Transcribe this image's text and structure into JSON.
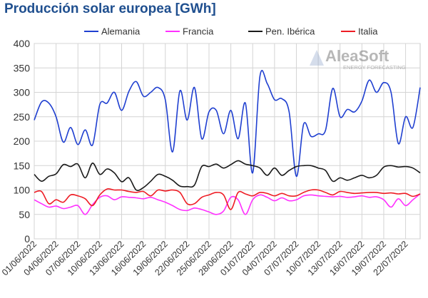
{
  "chart_data": {
    "type": "line",
    "title": "Producción solar europea [GWh]",
    "xlabel": "",
    "ylabel": "",
    "ylim": [
      0,
      400
    ],
    "yticks": [
      0,
      50,
      100,
      150,
      200,
      250,
      300,
      350,
      400
    ],
    "grid": true,
    "legend": "top",
    "watermark": {
      "brand": "AleaSoft",
      "tagline": "ENERGY FORECASTING"
    },
    "x": [
      "01/06/2022",
      "02/06/2022",
      "03/06/2022",
      "04/06/2022",
      "05/06/2022",
      "06/06/2022",
      "07/06/2022",
      "08/06/2022",
      "09/06/2022",
      "10/06/2022",
      "11/06/2022",
      "12/06/2022",
      "13/06/2022",
      "14/06/2022",
      "15/06/2022",
      "16/06/2022",
      "17/06/2022",
      "18/06/2022",
      "19/06/2022",
      "20/06/2022",
      "21/06/2022",
      "22/06/2022",
      "23/06/2022",
      "24/06/2022",
      "25/06/2022",
      "26/06/2022",
      "27/06/2022",
      "28/06/2022",
      "29/06/2022",
      "30/06/2022",
      "01/07/2022",
      "02/07/2022",
      "03/07/2022",
      "04/07/2022",
      "05/07/2022",
      "06/07/2022",
      "07/07/2022",
      "08/07/2022",
      "09/07/2022",
      "10/07/2022",
      "11/07/2022",
      "12/07/2022",
      "13/07/2022",
      "14/07/2022",
      "15/07/2022",
      "16/07/2022",
      "17/07/2022",
      "18/07/2022",
      "19/07/2022",
      "20/07/2022",
      "21/07/2022",
      "22/07/2022",
      "23/07/2022",
      "24/07/2022"
    ],
    "xticks": [
      "01/06/2022",
      "04/06/2022",
      "07/06/2022",
      "10/06/2022",
      "13/06/2022",
      "16/06/2022",
      "19/06/2022",
      "22/06/2022",
      "25/06/2022",
      "28/06/2022",
      "01/07/2022",
      "04/07/2022",
      "07/07/2022",
      "10/07/2022",
      "13/07/2022",
      "16/07/2022",
      "19/07/2022",
      "22/07/2022"
    ],
    "series": [
      {
        "name": "Alemania",
        "color": "#1f3fd0",
        "values": [
          243,
          280,
          278,
          250,
          198,
          228,
          193,
          223,
          192,
          275,
          278,
          300,
          263,
          302,
          322,
          292,
          300,
          310,
          285,
          178,
          303,
          243,
          310,
          205,
          260,
          263,
          215,
          263,
          205,
          278,
          135,
          333,
          318,
          285,
          287,
          260,
          128,
          235,
          210,
          215,
          222,
          308,
          250,
          265,
          260,
          282,
          325,
          300,
          320,
          300,
          195,
          250,
          228,
          310
        ]
      },
      {
        "name": "Francia",
        "color": "#ff30ff",
        "values": [
          80,
          72,
          65,
          67,
          62,
          65,
          68,
          50,
          70,
          85,
          88,
          80,
          86,
          85,
          84,
          82,
          85,
          80,
          75,
          68,
          60,
          58,
          63,
          60,
          55,
          50,
          57,
          85,
          80,
          50,
          80,
          90,
          85,
          78,
          84,
          78,
          80,
          88,
          90,
          88,
          87,
          86,
          87,
          85,
          86,
          88,
          85,
          86,
          80,
          65,
          82,
          68,
          80,
          92
        ]
      },
      {
        "name": "Pen. Ibérica",
        "color": "#1a1a1a",
        "values": [
          132,
          118,
          128,
          133,
          152,
          148,
          153,
          125,
          155,
          132,
          143,
          135,
          117,
          125,
          100,
          105,
          118,
          132,
          128,
          120,
          108,
          107,
          110,
          148,
          148,
          153,
          145,
          152,
          160,
          153,
          150,
          145,
          130,
          145,
          130,
          140,
          148,
          150,
          150,
          145,
          140,
          118,
          125,
          120,
          125,
          130,
          125,
          130,
          147,
          150,
          147,
          148,
          145,
          135
        ]
      },
      {
        "name": "Italia",
        "color": "#ee1c24",
        "values": [
          95,
          97,
          72,
          80,
          75,
          90,
          88,
          82,
          68,
          90,
          102,
          100,
          100,
          97,
          95,
          97,
          88,
          100,
          98,
          100,
          95,
          72,
          72,
          85,
          90,
          95,
          90,
          60,
          95,
          92,
          88,
          95,
          93,
          88,
          93,
          88,
          88,
          95,
          100,
          100,
          95,
          90,
          97,
          95,
          93,
          94,
          95,
          95,
          93,
          94,
          92,
          93,
          87,
          92
        ]
      }
    ]
  }
}
